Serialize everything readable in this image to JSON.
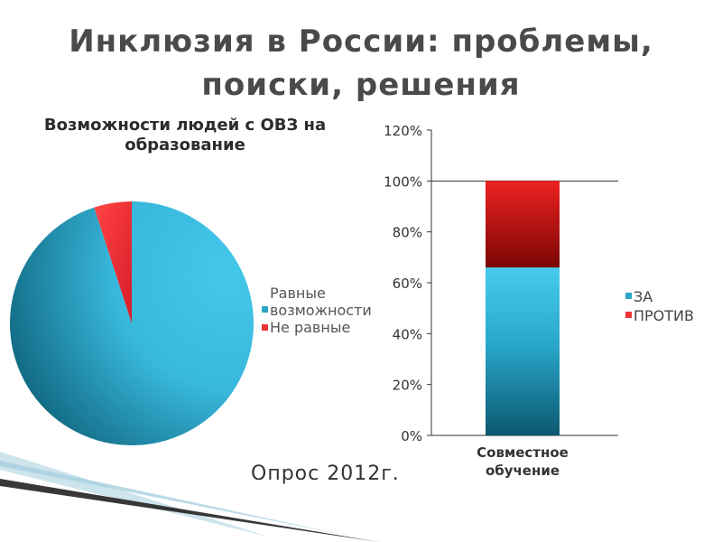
{
  "slide": {
    "title": "Инклюзия в России: проблемы,\nпоиски, решения",
    "note": "Опрос 2012г."
  },
  "colors": {
    "blue_light": "#44c8ea",
    "blue_dark": "#0a5a72",
    "red_light": "#ee3333",
    "red_dark": "#8a0606",
    "line": "#333333"
  },
  "chart_data": [
    {
      "type": "pie",
      "title": "Возможности людей с ОВЗ на образование",
      "categories": [
        "Равные возможности",
        "Не равные"
      ],
      "values": [
        95,
        5
      ],
      "legend_placement": "right"
    },
    {
      "type": "bar",
      "stacked": true,
      "categories": [
        "Совместное обучение"
      ],
      "series": [
        {
          "name": "ЗА",
          "values": [
            66
          ]
        },
        {
          "name": "ПРОТИВ",
          "values": [
            34
          ]
        }
      ],
      "ylim": [
        0,
        120
      ],
      "yticks": [
        "0%",
        "20%",
        "40%",
        "60%",
        "80%",
        "100%",
        "120%"
      ],
      "grid": false,
      "legend_placement": "right"
    }
  ]
}
